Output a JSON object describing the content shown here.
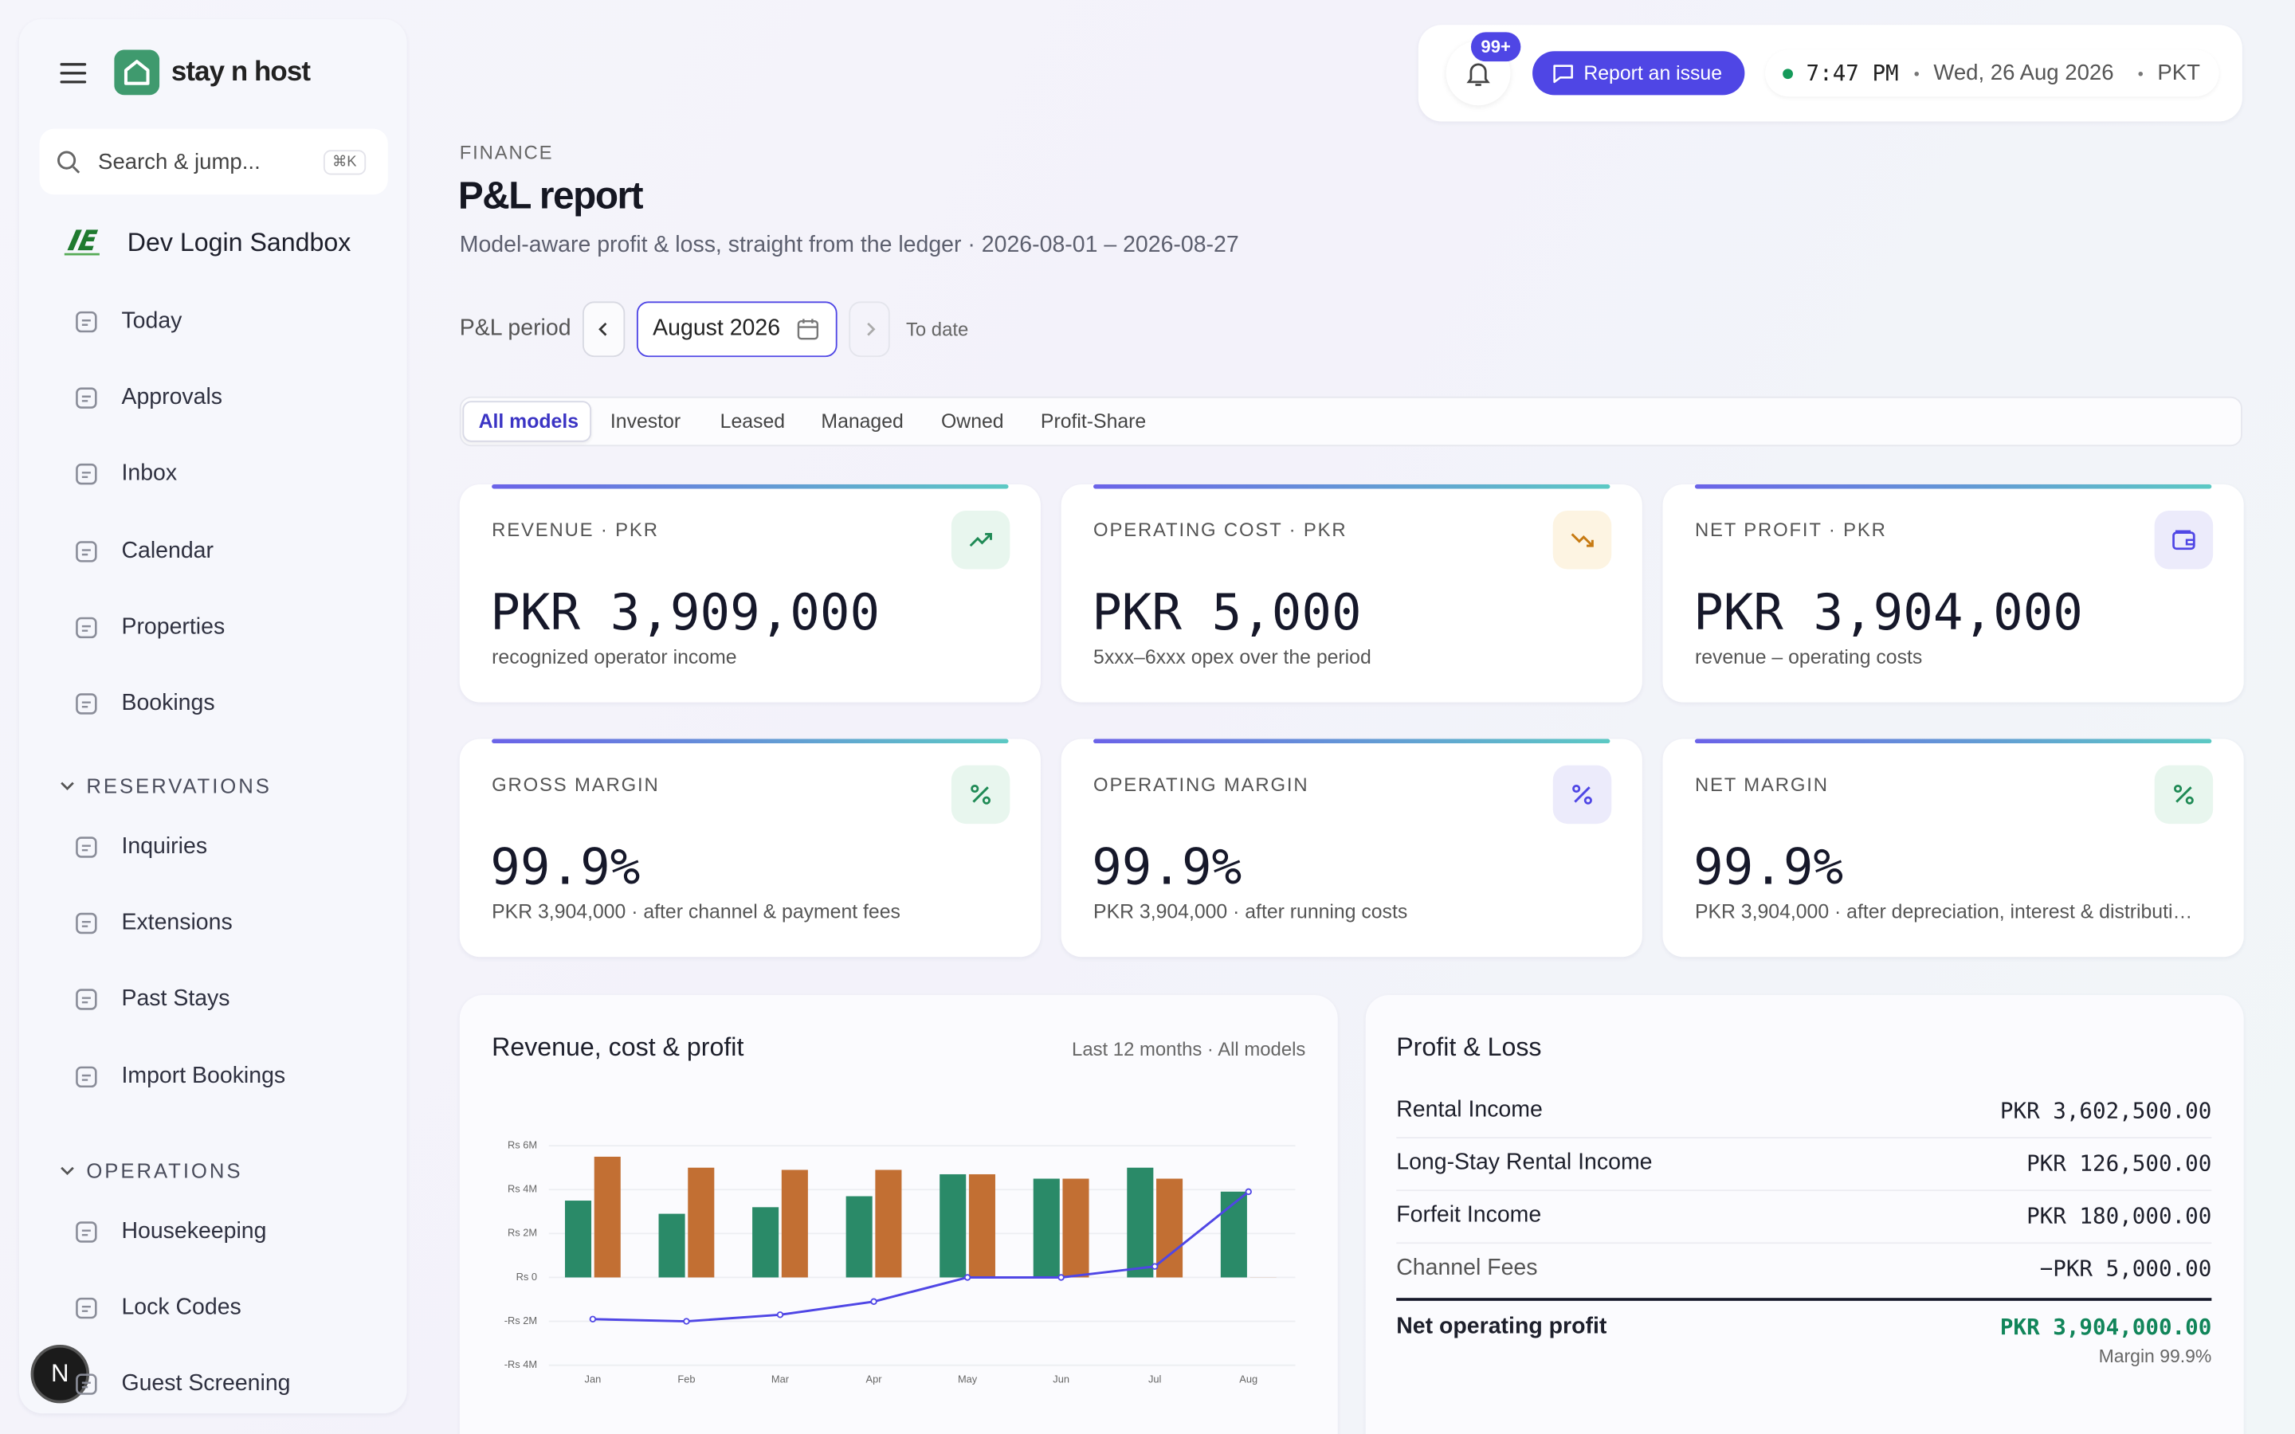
{
  "sidebar": {
    "brand": "stay n host",
    "search": "Search & jump...",
    "shortcut": "⌘K",
    "workspace": "Dev Login Sandbox",
    "nav": [
      "Today",
      "Approvals",
      "Inbox",
      "Calendar",
      "Properties",
      "Bookings"
    ],
    "sections": [
      {
        "title": "RESERVATIONS",
        "items": [
          "Inquiries",
          "Extensions",
          "Past Stays",
          "Import Bookings"
        ]
      },
      {
        "title": "OPERATIONS",
        "items": [
          "Housekeeping",
          "Lock Codes",
          "Guest Screening"
        ]
      }
    ],
    "avatar": "N"
  },
  "header": {
    "badge": "99+",
    "report": "Report an issue",
    "time": "7:47 PM",
    "date": "Wed, 26 Aug 2026",
    "timezone": "PKT"
  },
  "page": {
    "eyebrow": "FINANCE",
    "title": "P&L report",
    "subtitle": "Model-aware profit & loss, straight from the ledger · 2026-08-01 – 2026-08-27",
    "period_label": "P&L period",
    "period": "August 2026",
    "to_date": "To date",
    "tabs": [
      "All models",
      "Investor",
      "Leased",
      "Managed",
      "Owned",
      "Profit-Share"
    ],
    "kpis": [
      {
        "label": "REVENUE · PKR",
        "value": "PKR 3,909,000",
        "note": "recognized operator income"
      },
      {
        "label": "OPERATING COST · PKR",
        "value": "PKR 5,000",
        "note": "5xxx–6xxx opex over the period"
      },
      {
        "label": "NET PROFIT · PKR",
        "value": "PKR 3,904,000",
        "note": "revenue – operating costs"
      },
      {
        "label": "GROSS MARGIN",
        "value": "99.9%",
        "note": "PKR 3,904,000 · after channel & payment fees"
      },
      {
        "label": "OPERATING MARGIN",
        "value": "99.9%",
        "note": "PKR 3,904,000 · after running costs"
      },
      {
        "label": "NET MARGIN",
        "value": "99.9%",
        "note": "PKR 3,904,000 · after depreciation, interest & distributi…"
      }
    ],
    "pl": {
      "title": "Profit & Loss",
      "rows": [
        {
          "label": "Rental Income",
          "amount": "PKR 3,602,500.00"
        },
        {
          "label": "Long-Stay Rental Income",
          "amount": "PKR 126,500.00"
        },
        {
          "label": "Forfeit Income",
          "amount": "PKR 180,000.00"
        },
        {
          "label": "Channel Fees",
          "amount": "−PKR 5,000.00"
        }
      ],
      "total": {
        "label": "Net operating profit",
        "amount": "PKR 3,904,000.00",
        "note": "Margin 99.9%"
      }
    }
  },
  "chart_data": {
    "type": "bar",
    "title": "Revenue, cost & profit",
    "subtitle": "Last 12 months · All models",
    "categories": [
      "Jan",
      "Feb",
      "Mar",
      "Apr",
      "May",
      "Jun",
      "Jul",
      "Aug"
    ],
    "series": [
      {
        "color": "#2a8a68",
        "values": [
          3500000,
          2900000,
          3200000,
          3700000,
          4700000,
          4500000,
          5000000,
          3909000
        ]
      },
      {
        "color": "#c26f33",
        "values": [
          5500000,
          5000000,
          4900000,
          4900000,
          4700000,
          4500000,
          4500000,
          5000
        ]
      },
      {
        "type": "line",
        "color": "#4f46e5",
        "values": [
          -1900000,
          -2000000,
          -1700000,
          -1100000,
          0,
          0,
          500000,
          3904000
        ]
      }
    ],
    "ylim": [
      -4000000,
      6000000
    ],
    "yticks": [
      {
        "value": 6000000,
        "label": "Rs 6M"
      },
      {
        "value": 4000000,
        "label": "Rs 4M"
      },
      {
        "value": 2000000,
        "label": "Rs 2M"
      },
      {
        "value": 0,
        "label": "Rs 0"
      },
      {
        "value": -2000000,
        "label": "-Rs 2M"
      },
      {
        "value": -4000000,
        "label": "-Rs 4M"
      }
    ],
    "grid": true
  }
}
